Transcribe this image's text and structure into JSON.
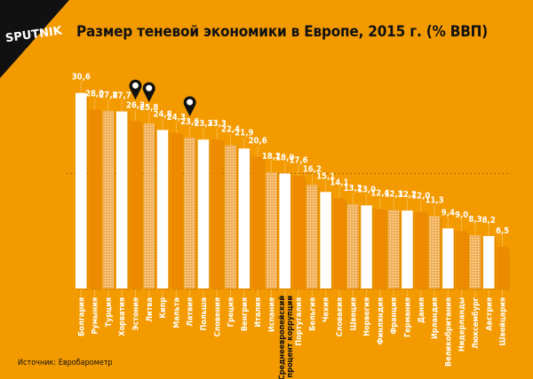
{
  "logo_text": "SPUTNIK",
  "source": "Источник: Евробарометр",
  "colors": {
    "background": "#f39a00",
    "bar_white": "#ffffff",
    "bar_orange": "#ee8a00",
    "bar_dotted": "#f5b860",
    "text": "#111111"
  },
  "pin_icon": "map-pin-icon",
  "chart_data": {
    "type": "bar",
    "title": "Размер теневой экономики в Европе, 2015 г. (% ВВП)",
    "xlabel": "",
    "ylabel": "",
    "ylim": [
      0,
      31
    ],
    "grid": false,
    "reference_line": {
      "category": "Среднеевропейский процент коррупции",
      "value": 18.0
    },
    "pinned": [
      "Эстония",
      "Литва",
      "Латвия"
    ],
    "categories": [
      "Болгария",
      "Румыния",
      "Турция",
      "Хорватия",
      "Эстония",
      "Литва",
      "Кипр",
      "Мальта",
      "Латвия",
      "Польша",
      "Словения",
      "Греция",
      "Венгрия",
      "Италия",
      "Испания",
      "Среднеевропейский процент коррупции",
      "Португалия",
      "Бельгия",
      "Чехия",
      "Словакия",
      "Швеция",
      "Норвегия",
      "Финляндия",
      "Франция",
      "Германия",
      "Дания",
      "Ирландия",
      "Великобритания",
      "Нидерланды",
      "Люксембург",
      "Австрия",
      "Швейцария"
    ],
    "values": [
      30.6,
      28.0,
      27.8,
      27.7,
      26.2,
      25.8,
      24.8,
      24.3,
      23.6,
      23.3,
      23.3,
      22.4,
      21.9,
      20.6,
      18.2,
      18.0,
      17.6,
      16.2,
      15.1,
      14.1,
      13.2,
      13.0,
      12.4,
      12.3,
      12.2,
      12.0,
      11.3,
      9.4,
      9.0,
      8.3,
      8.2,
      6.5
    ],
    "value_labels": [
      "30,6",
      "28,0",
      "27,8",
      "27,7",
      "26,2",
      "25,8",
      "24,8",
      "24,3",
      "23,6",
      "23,3",
      "23,3",
      "22,4",
      "21,9",
      "20,6",
      "18,2",
      "18,0",
      "17,6",
      "16,2",
      "15,1",
      "14,1",
      "13,2",
      "13,0",
      "12,4",
      "12,3",
      "12,2",
      "12,0",
      "11,3",
      "9,4",
      "9,0",
      "8,3",
      "8,2",
      "6,5"
    ]
  }
}
